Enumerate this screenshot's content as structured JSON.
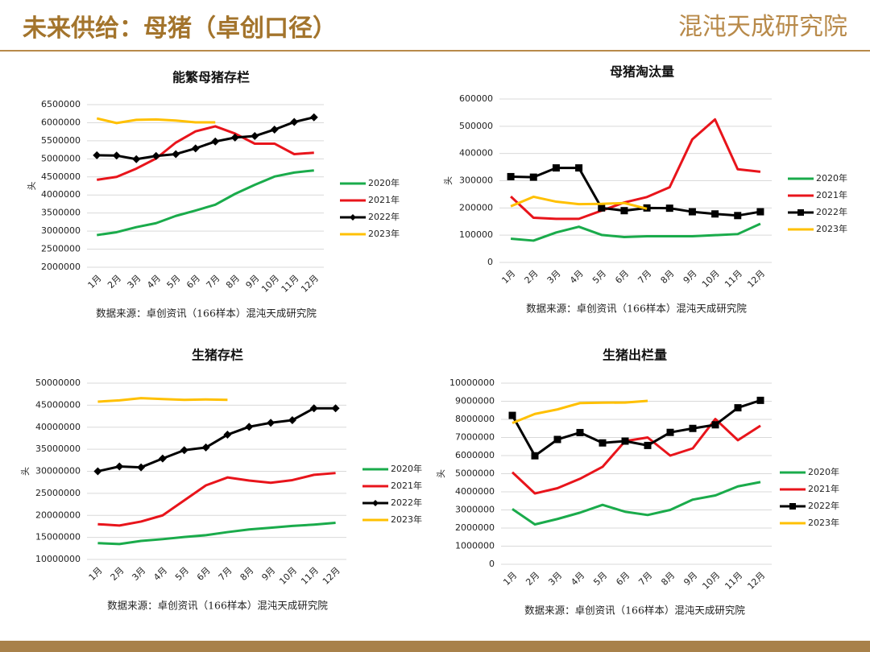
{
  "header": {
    "title": "未来供给：母猪（卓创口径）",
    "logo": "混沌天成研究院"
  },
  "chart_data": [
    {
      "type": "line",
      "title": "能繁母猪存栏",
      "y_label": "头",
      "source": "数据来源：卓创资讯（166样本）混沌天成研究院",
      "categories": [
        "1月",
        "2月",
        "3月",
        "4月",
        "5月",
        "6月",
        "7月",
        "8月",
        "9月",
        "10月",
        "11月",
        "12月"
      ],
      "ylim": [
        2000000,
        6500000
      ],
      "yticks": [
        2000000,
        2500000,
        3000000,
        3500000,
        4000000,
        4500000,
        5000000,
        5500000,
        6000000,
        6500000
      ],
      "grid": true,
      "legend": "right",
      "series": [
        {
          "name": "2020年",
          "color": "#1aab4b",
          "marker": null,
          "values": [
            2890000,
            2970000,
            3110000,
            3220000,
            3420000,
            3570000,
            3730000,
            4030000,
            4280000,
            4510000,
            4620000,
            4680000
          ]
        },
        {
          "name": "2021年",
          "color": "#e8141b",
          "marker": null,
          "values": [
            4420000,
            4500000,
            4730000,
            5010000,
            5450000,
            5760000,
            5900000,
            5700000,
            5420000,
            5420000,
            5130000,
            5170000
          ]
        },
        {
          "name": "2022年",
          "color": "#000000",
          "marker": "diamond",
          "values": [
            5100000,
            5090000,
            4990000,
            5080000,
            5130000,
            5290000,
            5480000,
            5590000,
            5630000,
            5810000,
            6020000,
            6150000
          ]
        },
        {
          "name": "2023年",
          "color": "#ffc000",
          "marker": null,
          "values": [
            6120000,
            5990000,
            6080000,
            6090000,
            6060000,
            6010000,
            6010000,
            null,
            null,
            null,
            null,
            null
          ]
        }
      ]
    },
    {
      "type": "line",
      "title": "母猪淘汰量",
      "y_label": "头",
      "source": "数据来源：卓创资讯（166样本）混沌天成研究院",
      "categories": [
        "1月",
        "2月",
        "3月",
        "4月",
        "5月",
        "6月",
        "7月",
        "8月",
        "9月",
        "10月",
        "11月",
        "12月"
      ],
      "ylim": [
        0,
        600000
      ],
      "yticks": [
        0,
        100000,
        200000,
        300000,
        400000,
        500000,
        600000
      ],
      "grid": true,
      "legend": "right",
      "series": [
        {
          "name": "2020年",
          "color": "#1aab4b",
          "marker": null,
          "values": [
            87000,
            80000,
            110000,
            131000,
            101000,
            93000,
            96000,
            96000,
            96000,
            100000,
            104000,
            142000
          ]
        },
        {
          "name": "2021年",
          "color": "#e8141b",
          "marker": null,
          "values": [
            242000,
            164000,
            160000,
            160000,
            190000,
            220000,
            240000,
            276000,
            452000,
            525000,
            342000,
            333000
          ]
        },
        {
          "name": "2022年",
          "color": "#000000",
          "marker": "square",
          "values": [
            315000,
            313000,
            347000,
            347000,
            200000,
            190000,
            200000,
            199000,
            186000,
            178000,
            172000,
            186000
          ]
        },
        {
          "name": "2023年",
          "color": "#ffc000",
          "marker": null,
          "values": [
            206000,
            241000,
            223000,
            214000,
            215000,
            218000,
            197000,
            null,
            null,
            null,
            null,
            null
          ]
        }
      ]
    },
    {
      "type": "line",
      "title": "生猪存栏",
      "y_label": "头",
      "source": "数据来源：卓创资讯（166样本）混沌天成研究院",
      "categories": [
        "1月",
        "2月",
        "3月",
        "4月",
        "5月",
        "6月",
        "7月",
        "8月",
        "9月",
        "10月",
        "11月",
        "12月"
      ],
      "ylim": [
        10000000,
        50000000
      ],
      "yticks": [
        10000000,
        15000000,
        20000000,
        25000000,
        30000000,
        35000000,
        40000000,
        45000000,
        50000000
      ],
      "grid": true,
      "legend": "right",
      "series": [
        {
          "name": "2020年",
          "color": "#1aab4b",
          "marker": null,
          "values": [
            13700000,
            13500000,
            14200000,
            14600000,
            15100000,
            15500000,
            16200000,
            16800000,
            17200000,
            17600000,
            17900000,
            18300000
          ]
        },
        {
          "name": "2021年",
          "color": "#e8141b",
          "marker": null,
          "values": [
            18000000,
            17700000,
            18600000,
            20000000,
            23400000,
            26800000,
            28600000,
            27900000,
            27400000,
            28000000,
            29200000,
            29600000
          ]
        },
        {
          "name": "2022年",
          "color": "#000000",
          "marker": "diamond",
          "values": [
            30000000,
            31100000,
            30900000,
            32900000,
            34800000,
            35400000,
            38300000,
            40100000,
            41000000,
            41600000,
            44300000,
            44300000
          ]
        },
        {
          "name": "2023年",
          "color": "#ffc000",
          "marker": null,
          "values": [
            45800000,
            46100000,
            46600000,
            46400000,
            46200000,
            46300000,
            46200000,
            null,
            null,
            null,
            null,
            null
          ]
        }
      ]
    },
    {
      "type": "line",
      "title": "生猪出栏量",
      "y_label": "头",
      "source": "数据来源：卓创资讯（166样本）混沌天成研究院",
      "categories": [
        "1月",
        "2月",
        "3月",
        "4月",
        "5月",
        "6月",
        "7月",
        "8月",
        "9月",
        "10月",
        "11月",
        "12月"
      ],
      "ylim": [
        0,
        10000000
      ],
      "yticks": [
        0,
        1000000,
        2000000,
        3000000,
        4000000,
        5000000,
        6000000,
        7000000,
        8000000,
        9000000,
        10000000
      ],
      "grid": true,
      "legend": "right",
      "series": [
        {
          "name": "2020年",
          "color": "#1aab4b",
          "marker": null,
          "values": [
            3050000,
            2200000,
            2500000,
            2850000,
            3280000,
            2900000,
            2720000,
            3000000,
            3570000,
            3800000,
            4300000,
            4540000
          ]
        },
        {
          "name": "2021年",
          "color": "#e8141b",
          "marker": null,
          "values": [
            5080000,
            3910000,
            4200000,
            4720000,
            5380000,
            6800000,
            7000000,
            6000000,
            6400000,
            8020000,
            6850000,
            7650000
          ]
        },
        {
          "name": "2022年",
          "color": "#000000",
          "marker": "square",
          "values": [
            8220000,
            5990000,
            6890000,
            7270000,
            6700000,
            6800000,
            6560000,
            7280000,
            7500000,
            7700000,
            8640000,
            9050000
          ]
        },
        {
          "name": "2023年",
          "color": "#ffc000",
          "marker": null,
          "values": [
            7800000,
            8300000,
            8550000,
            8900000,
            8920000,
            8930000,
            9020000,
            null,
            null,
            null,
            null,
            null
          ]
        }
      ]
    }
  ]
}
